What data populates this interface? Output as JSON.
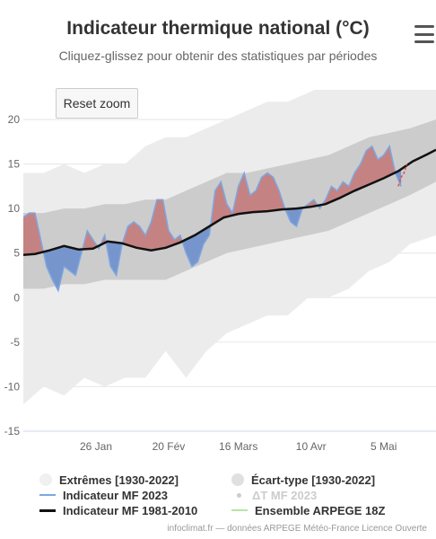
{
  "header": {
    "title": "Indicateur thermique national (°C)",
    "subtitle": "Cliquez-glissez pour obtenir des statistiques par périodes"
  },
  "toolbar": {
    "reset_label": "Reset zoom",
    "menu_icon": "hamburger-menu-icon"
  },
  "credits": "infoclimat.fr — données ARPEGE Météo-France Licence Ouverte",
  "colors": {
    "above_fill": "#c47a7a",
    "below_fill": "#6d8fcc",
    "mf2023_line": "#7ea6e0",
    "normal_line": "#111111",
    "extremes_band": "#ececec",
    "stddev_band": "#cccccc",
    "ensemble_line": "#b5e6a5",
    "forecast_line": "#e05050"
  },
  "chart_data": {
    "type": "line",
    "title": "Indicateur thermique national (°C)",
    "subtitle": "Cliquez-glissez pour obtenir des statistiques par périodes",
    "y_ticks": [
      20,
      15,
      10,
      5,
      0,
      -5,
      -10,
      -15
    ],
    "ylim": [
      -15,
      22
    ],
    "x_ticks": [
      {
        "label": "26 Jan",
        "day": 26
      },
      {
        "label": "20 Fév",
        "day": 51
      },
      {
        "label": "16 Mars",
        "day": 75
      },
      {
        "label": "10 Avr",
        "day": 100
      },
      {
        "label": "5 Mai",
        "day": 125
      }
    ],
    "xlim": [
      1,
      143
    ],
    "grid": true,
    "legend_position": "bottom",
    "series": [
      {
        "name": "Extrêmes [1930-2022]",
        "kind": "band",
        "x": [
          1,
          8,
          15,
          22,
          29,
          36,
          43,
          50,
          57,
          64,
          71,
          78,
          85,
          92,
          99,
          106,
          113,
          120,
          127,
          134,
          143
        ],
        "low": [
          -12,
          -10,
          -11,
          -9,
          -10,
          -9,
          -9,
          -6,
          -9,
          -6,
          -4,
          -3,
          -2,
          -2,
          0,
          0,
          1,
          3,
          4,
          6,
          7
        ],
        "high": [
          14,
          14,
          15,
          14,
          15,
          15,
          17,
          18,
          18,
          19,
          20,
          21,
          22,
          22,
          23,
          24,
          25,
          26,
          27,
          28,
          29
        ]
      },
      {
        "name": "Écart-type [1930-2022]",
        "kind": "band",
        "x": [
          1,
          8,
          15,
          22,
          29,
          36,
          43,
          50,
          57,
          64,
          71,
          78,
          85,
          92,
          99,
          106,
          113,
          120,
          127,
          134,
          143
        ],
        "low": [
          1,
          1,
          1.5,
          1.5,
          2,
          2,
          2,
          2,
          3,
          4,
          5,
          5.5,
          6,
          6.5,
          7,
          7.5,
          8.5,
          9.5,
          10.5,
          11.5,
          13
        ],
        "high": [
          9.5,
          9.5,
          10,
          10,
          10.5,
          10.5,
          11,
          11,
          12,
          13,
          14,
          14,
          14.5,
          15,
          15.5,
          16,
          17,
          18,
          18.5,
          19,
          20
        ]
      },
      {
        "name": "Indicateur MF 1981-2010",
        "kind": "line",
        "x": [
          1,
          5,
          10,
          15,
          20,
          25,
          30,
          35,
          40,
          45,
          50,
          55,
          60,
          65,
          70,
          75,
          80,
          85,
          90,
          95,
          100,
          105,
          110,
          115,
          120,
          125,
          130,
          135,
          140,
          143
        ],
        "y": [
          4.8,
          4.9,
          5.3,
          5.8,
          5.4,
          5.5,
          6.3,
          6.1,
          5.6,
          5.3,
          5.6,
          6.2,
          7.0,
          8.0,
          9.0,
          9.4,
          9.6,
          9.7,
          9.9,
          10.0,
          10.2,
          10.5,
          11.2,
          12.0,
          12.7,
          13.4,
          14.2,
          15.3,
          16.1,
          16.6
        ]
      },
      {
        "name": "Indicateur MF 2023",
        "kind": "line",
        "x": [
          1,
          3,
          5,
          7,
          9,
          11,
          13,
          15,
          17,
          19,
          21,
          23,
          25,
          27,
          29,
          31,
          33,
          35,
          37,
          39,
          41,
          43,
          45,
          47,
          49,
          51,
          53,
          55,
          57,
          59,
          61,
          63,
          65,
          67,
          69,
          71,
          73,
          75,
          77,
          79,
          81,
          83,
          85,
          87,
          89,
          91,
          93,
          95,
          97,
          99,
          101,
          103,
          105,
          107,
          109,
          111,
          113,
          115,
          117,
          119,
          121,
          123,
          125,
          127,
          129,
          131
        ],
        "y": [
          9.0,
          9.5,
          9.5,
          6.5,
          3.5,
          2.0,
          0.8,
          3.5,
          3.0,
          2.5,
          5.0,
          7.5,
          6.5,
          5.5,
          7.0,
          3.5,
          2.5,
          6.0,
          8.0,
          8.5,
          8.0,
          7.0,
          8.5,
          11.0,
          11.0,
          7.5,
          6.5,
          7.0,
          5.0,
          3.5,
          4.0,
          6.0,
          7.0,
          12.0,
          13.0,
          10.5,
          9.5,
          12.5,
          14.0,
          11.5,
          12.0,
          13.5,
          14.0,
          13.5,
          12.0,
          10.0,
          8.5,
          8.0,
          10.0,
          10.5,
          11.0,
          10.0,
          11.0,
          12.5,
          12.0,
          13.0,
          12.5,
          14.0,
          15.0,
          16.5,
          17.0,
          15.5,
          16.0,
          17.0,
          14.0,
          12.5
        ]
      },
      {
        "name": "ΔT MF 2023",
        "kind": "area",
        "hidden": true
      },
      {
        "name": "Ensemble ARPEGE 18Z",
        "kind": "line",
        "x": [
          130,
          131,
          132,
          133
        ],
        "y": [
          12.5,
          13.5,
          14.0,
          15.0
        ]
      }
    ]
  },
  "legend": {
    "items": [
      {
        "label": "Extrêmes [1930-2022]",
        "icon": "band-swatch-icon",
        "dim": false
      },
      {
        "label": "Écart-type [1930-2022]",
        "icon": "band-swatch-icon",
        "dim": false
      },
      {
        "label": "Indicateur MF 2023",
        "icon": "line-swatch-icon",
        "dim": false
      },
      {
        "label": "ΔT MF 2023",
        "icon": "dot-swatch-icon",
        "dim": true
      },
      {
        "label": "Indicateur MF 1981-2010",
        "icon": "line-swatch-icon",
        "dim": false
      },
      {
        "label": "Ensemble ARPEGE 18Z",
        "icon": "line-swatch-icon",
        "dim": false
      }
    ]
  }
}
